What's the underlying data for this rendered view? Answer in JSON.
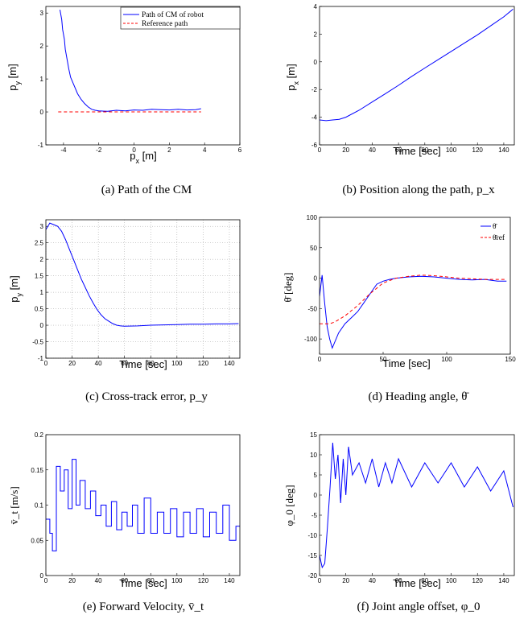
{
  "chart_data": [
    {
      "id": "a",
      "type": "line",
      "caption": "(a) Path of the CM",
      "xlabel": "p_x [m]",
      "ylabel": "p_y [m]",
      "xlim": [
        -5,
        6
      ],
      "ylim": [
        -1,
        3.2
      ],
      "xticks": [
        -4,
        -2,
        0,
        2,
        4,
        6
      ],
      "yticks": [
        -1,
        0,
        1,
        2,
        3
      ],
      "grid": false,
      "legend": {
        "position": "top-right",
        "entries": [
          "Path of CM of robot",
          "Reference path"
        ]
      },
      "series": [
        {
          "name": "Path of CM of robot",
          "color": "#0000ff",
          "style": "solid",
          "x": [
            -4.2,
            -4.1,
            -4.05,
            -3.95,
            -3.9,
            -3.8,
            -3.7,
            -3.6,
            -3.4,
            -3.2,
            -3.0,
            -2.8,
            -2.6,
            -2.4,
            -2.2,
            -2.0,
            -1.5,
            -1.0,
            -0.5,
            0.0,
            0.5,
            1.0,
            1.5,
            2.0,
            2.5,
            3.0,
            3.5,
            3.8
          ],
          "y": [
            3.1,
            2.8,
            2.5,
            2.2,
            1.9,
            1.6,
            1.3,
            1.05,
            0.8,
            0.55,
            0.38,
            0.25,
            0.15,
            0.08,
            0.05,
            0.03,
            0.02,
            0.05,
            0.03,
            0.06,
            0.05,
            0.08,
            0.07,
            0.06,
            0.08,
            0.06,
            0.07,
            0.1
          ]
        },
        {
          "name": "Reference path",
          "color": "#ff0000",
          "style": "dashed",
          "x": [
            -4.3,
            3.8
          ],
          "y": [
            0,
            0
          ]
        }
      ]
    },
    {
      "id": "b",
      "type": "line",
      "caption": "(b) Position along the path, p_x",
      "xlabel": "Time [sec]",
      "ylabel": "p_x [m]",
      "xlim": [
        0,
        148
      ],
      "ylim": [
        -6,
        4
      ],
      "xticks": [
        0,
        20,
        40,
        60,
        80,
        100,
        120,
        140
      ],
      "yticks": [
        -6,
        -4,
        -2,
        0,
        2,
        4
      ],
      "grid": false,
      "series": [
        {
          "name": "",
          "color": "#0000ff",
          "style": "solid",
          "x": [
            0,
            5,
            10,
            15,
            20,
            30,
            40,
            50,
            60,
            70,
            80,
            90,
            100,
            110,
            120,
            130,
            140,
            147
          ],
          "y": [
            -4.2,
            -4.25,
            -4.2,
            -4.15,
            -4.0,
            -3.5,
            -2.9,
            -2.3,
            -1.7,
            -1.05,
            -0.45,
            0.15,
            0.75,
            1.35,
            1.95,
            2.6,
            3.25,
            3.8
          ]
        }
      ]
    },
    {
      "id": "c",
      "type": "line",
      "caption": "(c) Cross-track error, p_y",
      "xlabel": "Time [sec]",
      "ylabel": "p_y [m]",
      "xlim": [
        0,
        148
      ],
      "ylim": [
        -1,
        3.2
      ],
      "xticks": [
        0,
        20,
        40,
        60,
        80,
        100,
        120,
        140
      ],
      "yticks": [
        -1,
        -0.5,
        0,
        0.5,
        1,
        1.5,
        2,
        2.5,
        3
      ],
      "grid": true,
      "series": [
        {
          "name": "",
          "color": "#0000ff",
          "style": "solid",
          "x": [
            0,
            3,
            6,
            9,
            12,
            15,
            18,
            21,
            24,
            27,
            30,
            33,
            36,
            39,
            42,
            45,
            48,
            51,
            54,
            57,
            60,
            70,
            80,
            90,
            100,
            110,
            120,
            130,
            140,
            147
          ],
          "y": [
            2.9,
            3.1,
            3.05,
            3.0,
            2.85,
            2.6,
            2.3,
            2.0,
            1.7,
            1.4,
            1.15,
            0.9,
            0.68,
            0.48,
            0.32,
            0.2,
            0.12,
            0.05,
            0.0,
            -0.02,
            -0.03,
            -0.02,
            0.0,
            0.01,
            0.02,
            0.03,
            0.03,
            0.04,
            0.04,
            0.05
          ]
        }
      ]
    },
    {
      "id": "d",
      "type": "line",
      "caption": "(d) Heading angle, θ̄",
      "xlabel": "Time [sec]",
      "ylabel": "θ̄ [deg]",
      "xlim": [
        0,
        150
      ],
      "ylim": [
        -125,
        100
      ],
      "xticks": [
        0,
        50,
        100,
        150
      ],
      "yticks": [
        -100,
        -50,
        0,
        50,
        100
      ],
      "grid": false,
      "legend": {
        "position": "top-right",
        "entries": [
          "θ̄",
          "θ̄ref"
        ]
      },
      "series": [
        {
          "name": "θ̄",
          "color": "#0000ff",
          "style": "solid",
          "x": [
            0,
            2,
            4,
            6,
            8,
            10,
            15,
            20,
            25,
            30,
            35,
            40,
            45,
            50,
            55,
            60,
            70,
            80,
            90,
            100,
            110,
            120,
            130,
            140,
            147
          ],
          "y": [
            -30,
            5,
            -40,
            -80,
            -100,
            -115,
            -90,
            -75,
            -65,
            -55,
            -40,
            -25,
            -10,
            -5,
            -2,
            0,
            2,
            3,
            2,
            0,
            -2,
            -3,
            -2,
            -5,
            -5
          ]
        },
        {
          "name": "θ̄ref",
          "color": "#ff0000",
          "style": "dashed",
          "x": [
            0,
            8,
            12,
            20,
            30,
            40,
            50,
            60,
            70,
            80,
            90,
            100,
            110,
            120,
            130,
            140,
            147
          ],
          "y": [
            -75,
            -75,
            -72,
            -62,
            -45,
            -25,
            -8,
            0,
            3,
            5,
            4,
            2,
            0,
            -1,
            -2,
            -2,
            -2
          ]
        }
      ]
    },
    {
      "id": "e",
      "type": "line",
      "caption": "(e) Forward Velocity, v̄_t",
      "xlabel": "Time [sec]",
      "ylabel": "v̄_t [m/s]",
      "xlim": [
        0,
        148
      ],
      "ylim": [
        0,
        0.2
      ],
      "xticks": [
        0,
        20,
        40,
        60,
        80,
        100,
        120,
        140
      ],
      "yticks": [
        0,
        0.05,
        0.1,
        0.15,
        0.2
      ],
      "grid": false,
      "series": [
        {
          "name": "",
          "color": "#0000ff",
          "style": "step",
          "x": [
            0,
            3,
            5,
            8,
            11,
            14,
            17,
            20,
            23,
            26,
            30,
            34,
            38,
            42,
            46,
            50,
            54,
            58,
            62,
            66,
            70,
            75,
            80,
            85,
            90,
            95,
            100,
            105,
            110,
            115,
            120,
            125,
            130,
            135,
            140,
            145,
            148
          ],
          "y": [
            0.08,
            0.06,
            0.035,
            0.155,
            0.12,
            0.15,
            0.095,
            0.165,
            0.1,
            0.135,
            0.095,
            0.12,
            0.085,
            0.1,
            0.07,
            0.105,
            0.065,
            0.09,
            0.07,
            0.1,
            0.06,
            0.11,
            0.06,
            0.09,
            0.06,
            0.095,
            0.055,
            0.09,
            0.06,
            0.095,
            0.055,
            0.09,
            0.06,
            0.1,
            0.05,
            0.07,
            0.07
          ]
        }
      ]
    },
    {
      "id": "f",
      "type": "line",
      "caption": "(f) Joint angle offset, φ_0",
      "xlabel": "Time [sec]",
      "ylabel": "φ_0 [deg]",
      "xlim": [
        0,
        148
      ],
      "ylim": [
        -20,
        15
      ],
      "xticks": [
        0,
        20,
        40,
        60,
        80,
        100,
        120,
        140
      ],
      "yticks": [
        -20,
        -15,
        -10,
        -5,
        0,
        5,
        10,
        15
      ],
      "grid": false,
      "series": [
        {
          "name": "",
          "color": "#0000ff",
          "style": "solid",
          "x": [
            0,
            2,
            4,
            6,
            8,
            10,
            12,
            14,
            16,
            18,
            20,
            22,
            25,
            30,
            35,
            40,
            45,
            50,
            55,
            60,
            70,
            80,
            90,
            100,
            110,
            120,
            130,
            140,
            147
          ],
          "y": [
            -15,
            -18,
            -17,
            -8,
            2,
            13,
            4,
            10,
            -2,
            9,
            0,
            12,
            5,
            8,
            3,
            9,
            2,
            8,
            3,
            9,
            2,
            8,
            3,
            8,
            2,
            7,
            1,
            6,
            -3
          ]
        }
      ]
    }
  ]
}
